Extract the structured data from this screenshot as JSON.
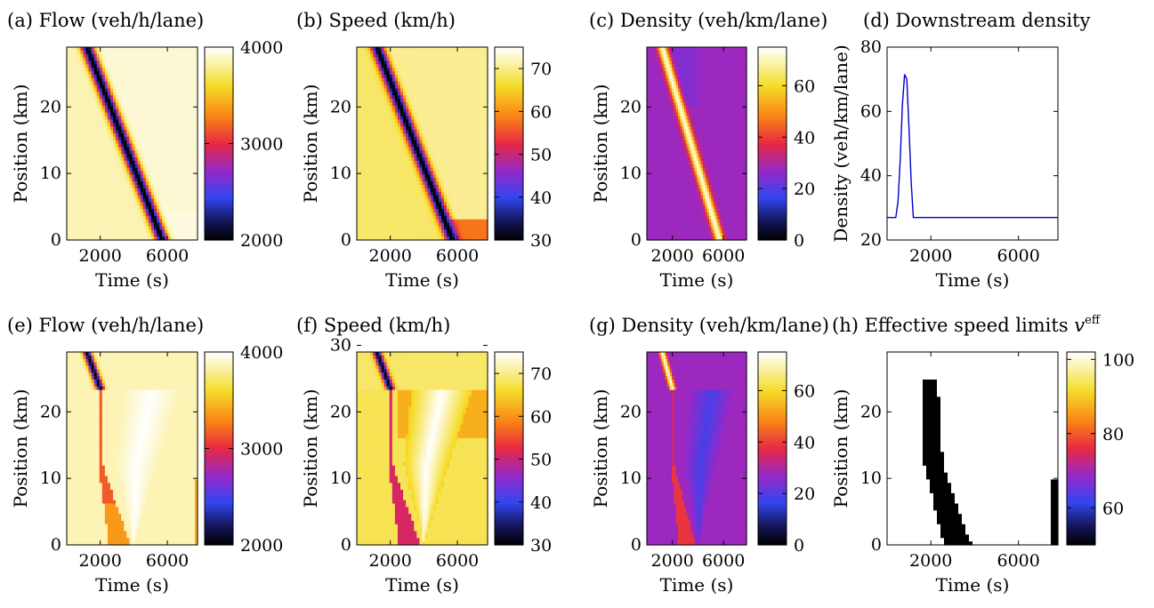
{
  "chart_data": [
    {
      "type": "heatmap",
      "kind": "flow",
      "title": "(a) Flow (veh/h/lane)",
      "xlabel": "Time (s)",
      "ylabel": "Position (km)",
      "xlim": [
        0,
        7800
      ],
      "ylim": [
        0,
        29
      ],
      "xticks": [
        2000,
        6000
      ],
      "yticks": [
        0,
        10,
        20
      ],
      "colorbar": {
        "range": [
          2000,
          4000
        ],
        "ticks": [
          2000,
          3000,
          4000
        ],
        "colormap": "hot-cold"
      },
      "description_values": {
        "background": 3950,
        "congestion_band": {
          "start": [
            1200,
            29
          ],
          "end": [
            5700,
            0
          ],
          "value": 2000
        }
      }
    },
    {
      "type": "heatmap",
      "kind": "speed",
      "title": "(b) Speed (km/h)",
      "xlabel": "Time (s)",
      "ylabel": "Position (km)",
      "xlim": [
        0,
        7800
      ],
      "ylim": [
        0,
        29
      ],
      "xticks": [
        2000,
        6000
      ],
      "yticks": [
        0,
        10,
        20
      ],
      "colorbar": {
        "range": [
          30,
          75
        ],
        "ticks": [
          30,
          40,
          50,
          60,
          70
        ],
        "colormap": "hot-cold"
      },
      "description_values": {
        "background": 71,
        "congestion_band": {
          "start": [
            1200,
            29
          ],
          "end": [
            5700,
            0
          ],
          "value": 30
        }
      }
    },
    {
      "type": "heatmap",
      "kind": "density",
      "title": "(c) Density (veh/km/lane)",
      "xlabel": "Time (s)",
      "ylabel": "Position (km)",
      "xlim": [
        0,
        7800
      ],
      "ylim": [
        0,
        29
      ],
      "xticks": [
        2000,
        6000
      ],
      "yticks": [
        0,
        10,
        20
      ],
      "colorbar": {
        "range": [
          0,
          75
        ],
        "ticks": [
          0,
          20,
          40,
          60
        ],
        "colormap": "hot-cold"
      },
      "description_values": {
        "background": 27,
        "congestion_band": {
          "start": [
            1200,
            29
          ],
          "end": [
            5700,
            0
          ],
          "value": 72
        }
      }
    },
    {
      "type": "line",
      "kind": "line",
      "title": "(d) Downstream density",
      "xlabel": "Time (s)",
      "ylabel": "Density (veh/km/lane)",
      "xlim": [
        0,
        7800
      ],
      "ylim": [
        20,
        80
      ],
      "xticks": [
        2000,
        6000
      ],
      "yticks": [
        20,
        40,
        60,
        80
      ],
      "series": [
        {
          "color": "#0000cc",
          "x": [
            0,
            200,
            400,
            500,
            600,
            700,
            800,
            900,
            1000,
            1100,
            1200,
            1300,
            7800
          ],
          "y": [
            27,
            27,
            27,
            32,
            45,
            62,
            71.5,
            70,
            55,
            38,
            27,
            27,
            27
          ]
        }
      ]
    },
    {
      "type": "heatmap",
      "kind": "flow",
      "title": "(e) Flow (veh/h/lane)",
      "xlabel": "Time (s)",
      "ylabel": "Position (km)",
      "xlim": [
        0,
        7800
      ],
      "ylim": [
        0,
        29
      ],
      "xticks": [
        2000,
        6000
      ],
      "yticks": [
        0,
        10,
        20
      ],
      "colorbar": {
        "range": [
          2000,
          4000
        ],
        "ticks": [
          2000,
          3000,
          4000
        ],
        "colormap": "hot-cold"
      },
      "description_values": {
        "background": 3950,
        "upstream_jam": {
          "from": [
            1200,
            29
          ],
          "to": [
            2000,
            24
          ],
          "value": 2000
        },
        "mitigation_zone": {
          "value": 3100,
          "final_value": 3550
        },
        "recovery_wedge_value": 4000
      }
    },
    {
      "type": "heatmap",
      "kind": "speed",
      "title": "(f) Speed (km/h)",
      "xlabel": "Time (s)",
      "ylabel": "Position (km)",
      "xlim": [
        0,
        7800
      ],
      "ylim": [
        0,
        29
      ],
      "xticks": [
        2000,
        6000
      ],
      "yticks": [
        0,
        10,
        20,
        30
      ],
      "colorbar": {
        "range": [
          30,
          75
        ],
        "ticks": [
          30,
          40,
          50,
          60,
          70
        ],
        "colormap": "hot-cold"
      },
      "description_values": {
        "background": 71,
        "upstream_jam": {
          "from": [
            1200,
            29
          ],
          "to": [
            2000,
            24
          ],
          "value": 30
        },
        "mitigation_zone": {
          "value": 50,
          "final_value": 50
        },
        "recovery_wedge_value": 75
      }
    },
    {
      "type": "heatmap",
      "kind": "density",
      "title": "(g) Density (veh/km/lane)",
      "xlabel": "Time (s)",
      "ylabel": "Position (km)",
      "xlim": [
        0,
        7800
      ],
      "ylim": [
        0,
        29
      ],
      "xticks": [
        2000,
        6000
      ],
      "yticks": [
        0,
        10,
        20
      ],
      "colorbar": {
        "range": [
          0,
          75
        ],
        "ticks": [
          0,
          20,
          40,
          60
        ],
        "colormap": "hot-cold"
      },
      "description_values": {
        "background": 27,
        "upstream_jam": {
          "from": [
            1200,
            29
          ],
          "to": [
            2000,
            24
          ],
          "value": 72
        },
        "mitigation_zone": {
          "value": 40,
          "final_value": 40
        },
        "recovery_wedge_value": 16
      }
    },
    {
      "type": "heatmap",
      "kind": "limits",
      "title": "(h) Effective speed limits ",
      "title_math": "v",
      "title_sup": "eff",
      "xlabel": "Time (s)",
      "ylabel": "Position (km)",
      "xlim": [
        0,
        7800
      ],
      "ylim": [
        0,
        29
      ],
      "xticks": [
        2000,
        6000
      ],
      "yticks": [
        0,
        10,
        20
      ],
      "colorbar": {
        "range": [
          50,
          102
        ],
        "ticks": [
          60,
          80,
          100
        ],
        "colormap": "hot-cold"
      },
      "description_values": {
        "background": 102,
        "limited_region": {
          "value": 50,
          "top_km": 25,
          "bottom_km": 0,
          "start_s": 1700,
          "end_s": 3800
        },
        "late_limit": {
          "value": 50,
          "start_s": 7500,
          "end_s": 7700,
          "top_km": 10
        }
      }
    }
  ]
}
